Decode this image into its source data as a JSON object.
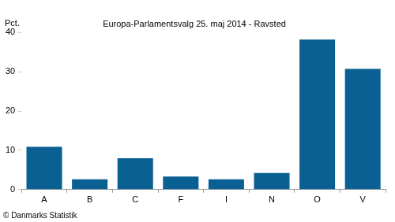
{
  "chart_data": {
    "type": "bar",
    "title": "Europa-Parlamentsvalg 25. maj 2014 - Ravsted",
    "ylabel": "Pct.",
    "note": "© Danmarks Statistik",
    "categories": [
      "A",
      "B",
      "C",
      "F",
      "I",
      "N",
      "O",
      "V"
    ],
    "values": [
      10.9,
      2.6,
      8.0,
      3.3,
      2.6,
      4.2,
      38.2,
      30.7
    ],
    "color": "#0a5f93",
    "ylim": [
      0,
      40
    ],
    "yticks": [
      0,
      10,
      20,
      30,
      40
    ],
    "grid": false
  }
}
